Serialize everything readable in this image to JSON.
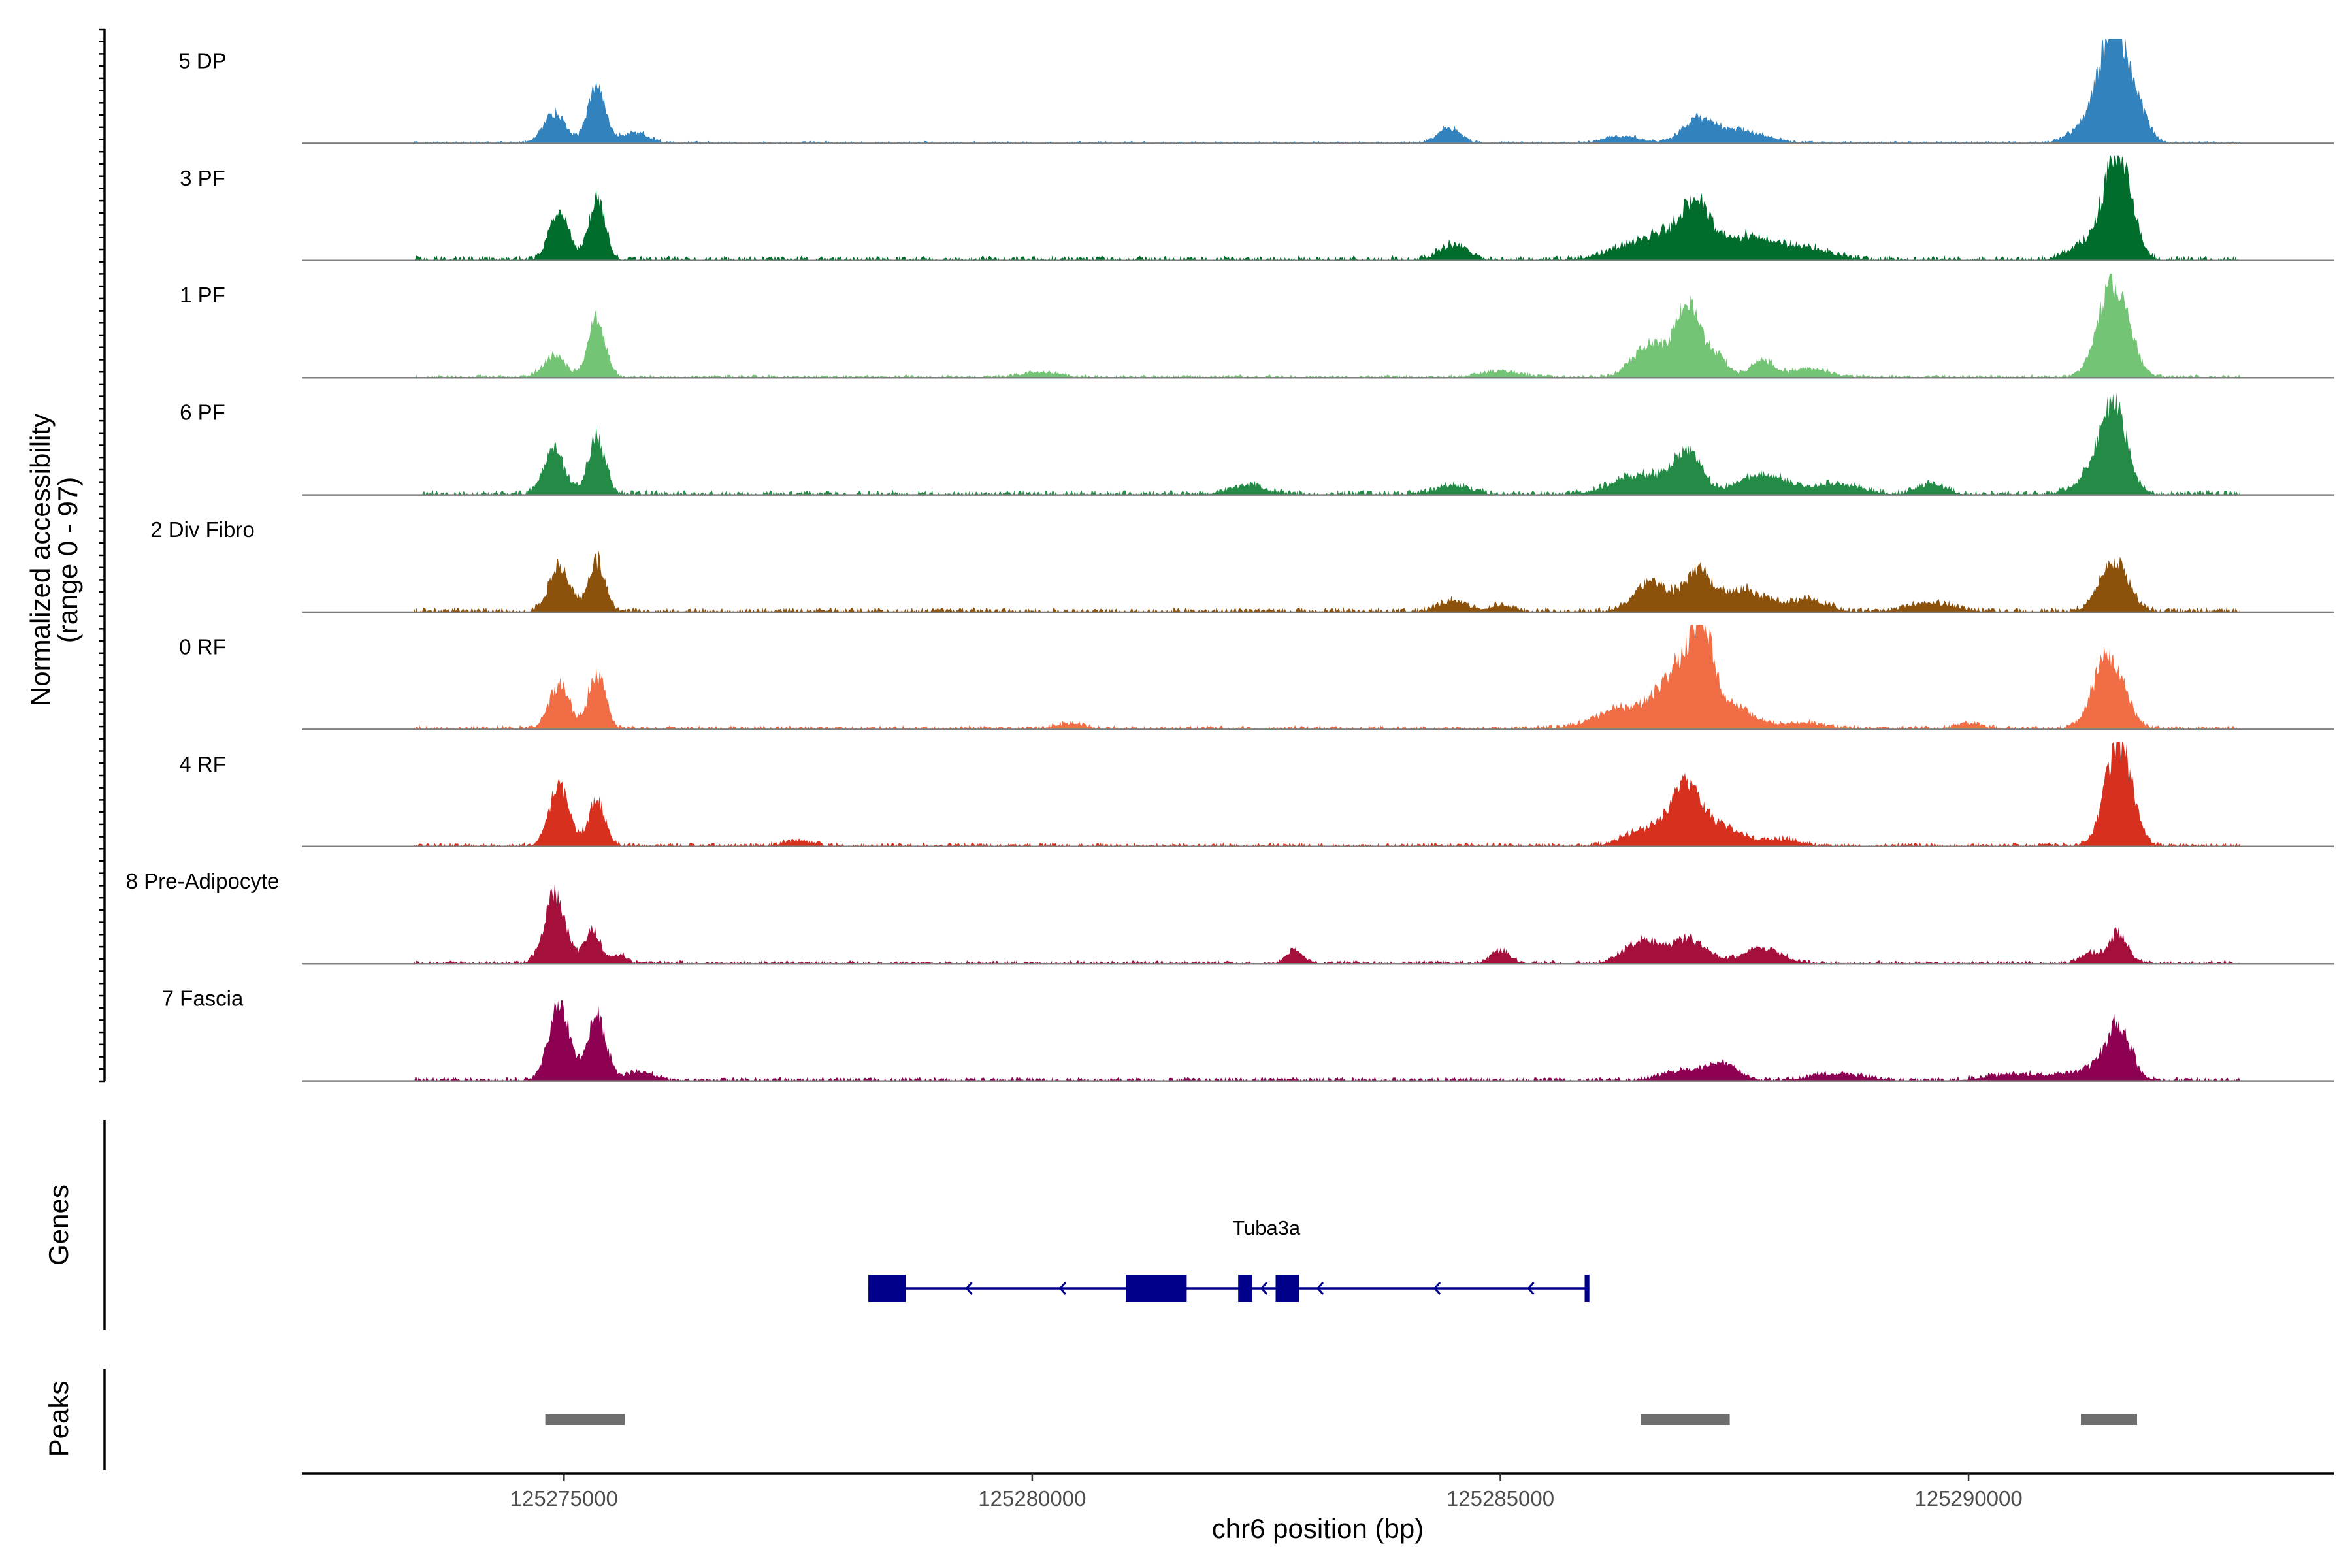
{
  "chart_data": {
    "type": "area",
    "title": "",
    "chromosome": "chr6",
    "xlabel": "chr6 position (bp)",
    "ylabel_line1": "Normalized accessibility",
    "ylabel_line2": "(range 0 - 97)",
    "ylim": [
      0,
      97
    ],
    "xlim": [
      125272200,
      125293900
    ],
    "x_ticks": [
      125275000,
      125280000,
      125285000,
      125290000
    ],
    "x_tick_labels": [
      "125275000",
      "125280000",
      "125285000",
      "125290000"
    ],
    "panel_labels": {
      "genes": "Genes",
      "peaks": "Peaks"
    },
    "tracks": [
      {
        "name": "5 DP",
        "color": "#3182bd",
        "peaks": [
          [
            125274900,
            28,
            120
          ],
          [
            125275350,
            55,
            90
          ],
          [
            125275750,
            10,
            150
          ],
          [
            125284450,
            14,
            120
          ],
          [
            125286300,
            6,
            200
          ],
          [
            125287100,
            18,
            160
          ],
          [
            125287500,
            12,
            300
          ],
          [
            125291300,
            16,
            200
          ],
          [
            125291550,
            97,
            150
          ],
          [
            125291800,
            25,
            120
          ]
        ],
        "bg": 1.5
      },
      {
        "name": "3 PF",
        "color": "#006d2c",
        "peaks": [
          [
            125274950,
            45,
            100
          ],
          [
            125275350,
            55,
            90
          ],
          [
            125284500,
            14,
            150
          ],
          [
            125286300,
            9,
            250
          ],
          [
            125286800,
            24,
            260
          ],
          [
            125287100,
            40,
            150
          ],
          [
            125287600,
            20,
            250
          ],
          [
            125288200,
            12,
            300
          ],
          [
            125291300,
            15,
            200
          ],
          [
            125291600,
            97,
            140
          ]
        ],
        "bg": 3
      },
      {
        "name": "1 PF",
        "color": "#74c476",
        "peaks": [
          [
            125274900,
            20,
            120
          ],
          [
            125275350,
            52,
            90
          ],
          [
            125280100,
            5,
            200
          ],
          [
            125285000,
            6,
            200
          ],
          [
            125286600,
            30,
            180
          ],
          [
            125287000,
            65,
            130
          ],
          [
            125287300,
            20,
            120
          ],
          [
            125287800,
            16,
            120
          ],
          [
            125288300,
            8,
            200
          ],
          [
            125291550,
            88,
            160
          ]
        ],
        "bg": 2
      },
      {
        "name": "6 PF",
        "color": "#238b45",
        "peaks": [
          [
            125274900,
            40,
            110
          ],
          [
            125275350,
            52,
            90
          ],
          [
            125282300,
            8,
            200
          ],
          [
            125284500,
            8,
            180
          ],
          [
            125286500,
            18,
            300
          ],
          [
            125287000,
            36,
            150
          ],
          [
            125287800,
            18,
            250
          ],
          [
            125288600,
            10,
            250
          ],
          [
            125289600,
            9,
            150
          ],
          [
            125291400,
            20,
            200
          ],
          [
            125291550,
            70,
            140
          ]
        ],
        "bg": 3
      },
      {
        "name": "2 Div Fibro",
        "color": "#8c510a",
        "peaks": [
          [
            125274950,
            42,
            110
          ],
          [
            125275350,
            46,
            90
          ],
          [
            125284500,
            10,
            150
          ],
          [
            125285000,
            6,
            120
          ],
          [
            125286600,
            26,
            180
          ],
          [
            125287100,
            34,
            150
          ],
          [
            125287600,
            20,
            250
          ],
          [
            125288300,
            10,
            200
          ],
          [
            125289600,
            8,
            250
          ],
          [
            125291550,
            48,
            150
          ]
        ],
        "bg": 3
      },
      {
        "name": "0 RF",
        "color": "#f16d45",
        "peaks": [
          [
            125274950,
            40,
            110
          ],
          [
            125275350,
            50,
            90
          ],
          [
            125280400,
            5,
            150
          ],
          [
            125286400,
            20,
            350
          ],
          [
            125286900,
            46,
            180
          ],
          [
            125287150,
            80,
            120
          ],
          [
            125287500,
            20,
            200
          ],
          [
            125288200,
            6,
            250
          ],
          [
            125290000,
            5,
            120
          ],
          [
            125291500,
            70,
            160
          ]
        ],
        "bg": 2.5
      },
      {
        "name": "4 RF",
        "color": "#d7301f",
        "peaks": [
          [
            125274950,
            55,
            110
          ],
          [
            125275350,
            42,
            90
          ],
          [
            125277500,
            5,
            150
          ],
          [
            125286600,
            16,
            250
          ],
          [
            125287000,
            54,
            160
          ],
          [
            125287400,
            16,
            200
          ],
          [
            125288000,
            6,
            200
          ],
          [
            125291600,
            96,
            140
          ]
        ],
        "bg": 2.5
      },
      {
        "name": "8 Pre-Adipocyte",
        "color": "#a50f3c",
        "peaks": [
          [
            125274900,
            65,
            110
          ],
          [
            125275300,
            30,
            90
          ],
          [
            125275600,
            8,
            70
          ],
          [
            125282800,
            12,
            80
          ],
          [
            125285000,
            12,
            100
          ],
          [
            125286500,
            20,
            180
          ],
          [
            125287000,
            22,
            200
          ],
          [
            125287800,
            14,
            200
          ],
          [
            125291300,
            10,
            100
          ],
          [
            125291600,
            28,
            100
          ]
        ],
        "bg": 2
      },
      {
        "name": "7 Fascia",
        "color": "#8e0152",
        "peaks": [
          [
            125274950,
            70,
            110
          ],
          [
            125275350,
            58,
            100
          ],
          [
            125275800,
            8,
            150
          ],
          [
            125287000,
            10,
            250
          ],
          [
            125287400,
            14,
            150
          ],
          [
            125288600,
            6,
            300
          ],
          [
            125290500,
            6,
            300
          ],
          [
            125291300,
            10,
            250
          ],
          [
            125291600,
            48,
            130
          ]
        ],
        "bg": 2.5
      }
    ],
    "genes": [
      {
        "name": "Tuba3a",
        "strand": "-",
        "start": 125278250,
        "end": 125285950,
        "exons": [
          [
            125278250,
            125278650
          ],
          [
            125281000,
            125281650
          ],
          [
            125282200,
            125282350
          ],
          [
            125282600,
            125282850
          ],
          [
            125285900,
            125285950
          ]
        ]
      }
    ],
    "peak_regions": [
      [
        125274800,
        125275650
      ],
      [
        125286500,
        125287450
      ],
      [
        125291200,
        125291800
      ]
    ]
  }
}
